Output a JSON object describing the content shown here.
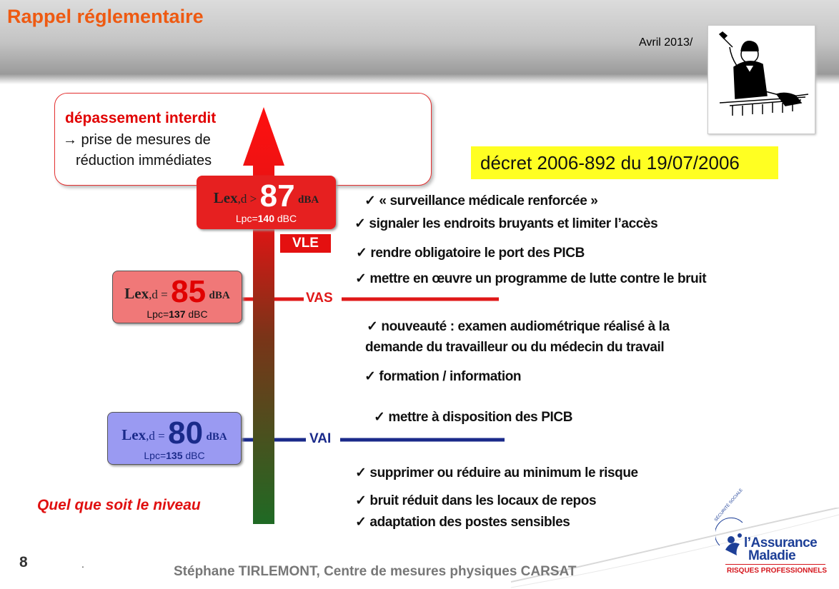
{
  "slide": {
    "title": "Rappel réglementaire",
    "date": "Avril 2013/",
    "decree": "décret 2006-892 du 19/07/2006",
    "warning": {
      "title": "dépassement interdit",
      "line1": "→ prise de mesures de",
      "line2": "réduction immédiates"
    },
    "levels": [
      {
        "lex": "Lex",
        "sub": ",d >",
        "value": "87",
        "unit": "dBA",
        "lpc_prefix": "Lpc=",
        "lpc_value": "140",
        "lpc_unit": " dBC",
        "color": "#e62020"
      },
      {
        "lex": "Lex",
        "sub": ",d =",
        "value": "85",
        "unit": "dBA",
        "lpc_prefix": "Lpc=",
        "lpc_value": "137",
        "lpc_unit": " dBC",
        "color": "#f07878"
      },
      {
        "lex": "Lex",
        "sub": ",d =",
        "value": "80",
        "unit": "dBA",
        "lpc_prefix": "Lpc=",
        "lpc_value": "135",
        "lpc_unit": " dBC",
        "color": "#9a9af2"
      }
    ],
    "thresholds": {
      "vle": "VLE",
      "vas": "VAS",
      "vai": "VAI"
    },
    "items_vle": [
      "✓  « surveillance médicale renforcée »",
      "✓ signaler les endroits bruyants et limiter l’accès",
      "✓ rendre obligatoire le port des PICB",
      "✓ mettre en œuvre un programme de lutte contre le bruit"
    ],
    "items_vas": [
      "✓ nouveauté : examen audiométrique réalisé à la",
      "demande du travailleur ou du médecin du travail",
      "✓  formation / information"
    ],
    "items_vai": [
      "✓ mettre à disposition des PICB"
    ],
    "items_any": [
      "✓ supprimer ou réduire au  minimum le risque",
      "✓ bruit réduit dans les locaux de repos",
      "✓ adaptation des postes sensibles"
    ],
    "any_level_label": "Quel que soit le niveau",
    "page_number": "8",
    "dot": ".",
    "footer": "Stéphane TIRLEMONT, Centre de mesures physiques CARSAT",
    "logo": {
      "arc_text": "SÉCURITÉ SOCIALE",
      "line1": "l’Assurance",
      "line2": "Maladie",
      "line3": "RISQUES PROFESSIONNELS"
    },
    "colors": {
      "title": "#ee5a12",
      "red": "#e41010",
      "blue": "#1a2a8a",
      "decree_bg": "#ffff22",
      "logo_blue": "#1d3f97",
      "logo_red": "#d5141b"
    }
  }
}
